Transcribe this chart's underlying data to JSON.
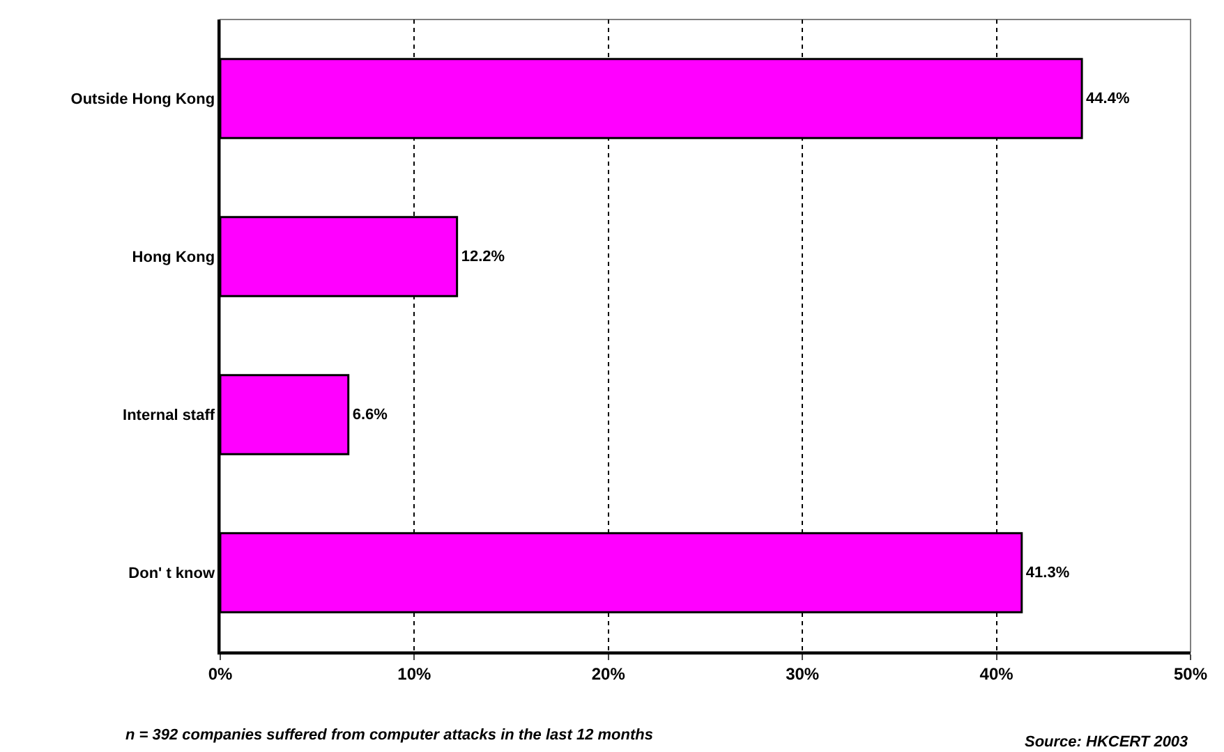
{
  "chart_data": {
    "type": "bar",
    "orientation": "horizontal",
    "categories": [
      "Outside Hong Kong",
      "Hong Kong",
      "Internal staff",
      "Don' t know"
    ],
    "values": [
      44.4,
      12.2,
      6.6,
      41.3
    ],
    "value_labels": [
      "44.4%",
      "12.2%",
      "6.6%",
      "41.3%"
    ],
    "color": "#ff00ff",
    "xlim": [
      0,
      50
    ],
    "xticks": [
      {
        "value": 0,
        "label": "0%"
      },
      {
        "value": 10,
        "label": "10%"
      },
      {
        "value": 20,
        "label": "20%"
      },
      {
        "value": 30,
        "label": "30%"
      },
      {
        "value": 40,
        "label": "40%"
      },
      {
        "value": 50,
        "label": "50%"
      }
    ],
    "grid": "x",
    "annotations": [
      "n = 392 companies suffered from computer attacks in the last 12 months",
      "Source: HKCERT 2003"
    ]
  }
}
